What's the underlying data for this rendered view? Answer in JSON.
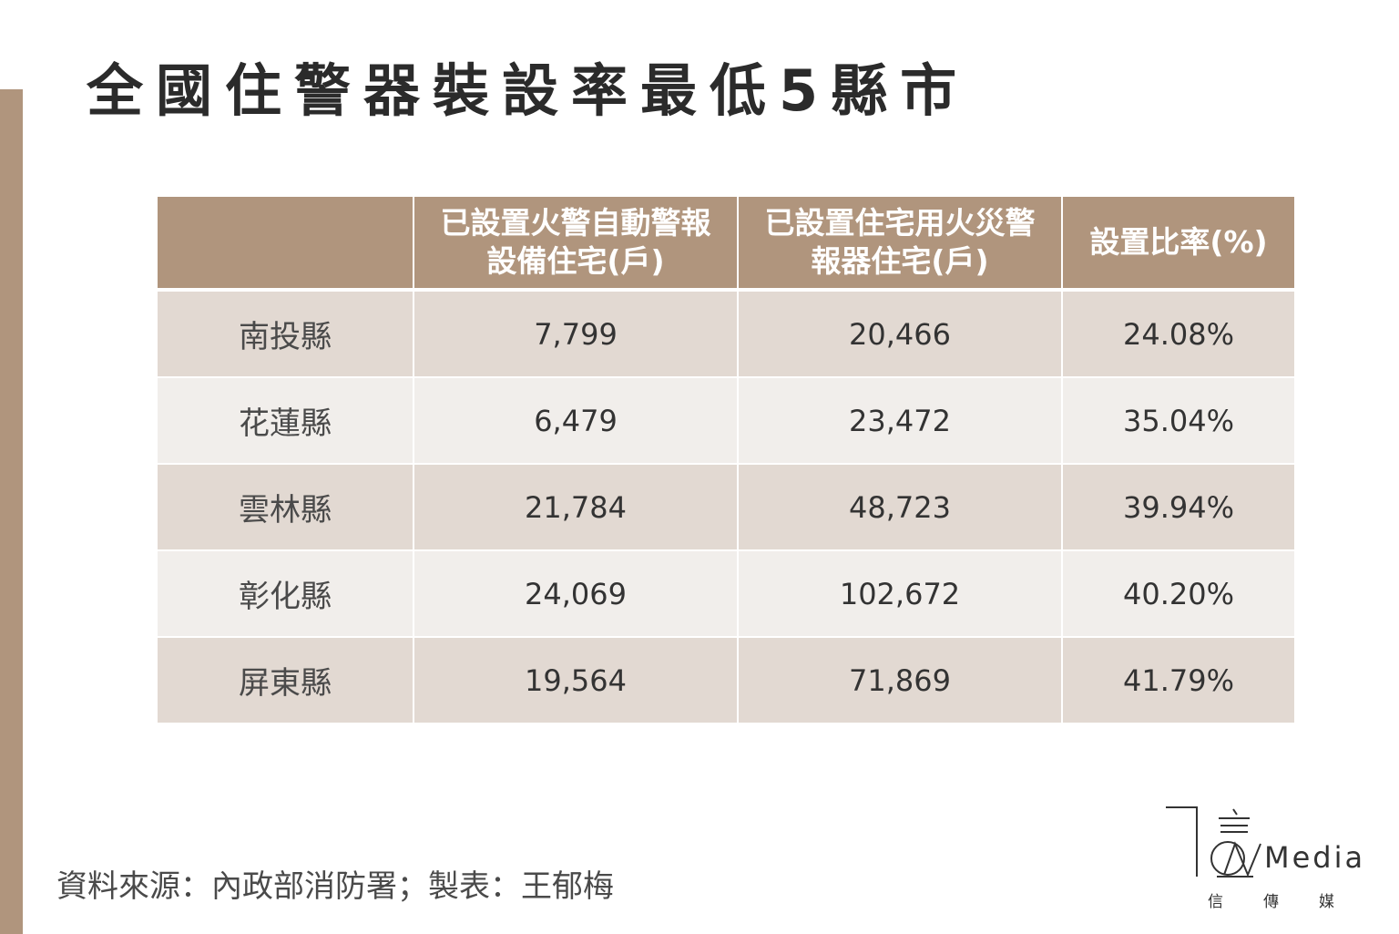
{
  "title": "全國住警器裝設率最低5縣市",
  "table": {
    "headers": [
      "",
      "已設置火警自動警報設備住宅(戶)",
      "已設置住宅用火災警報器住宅(戶)",
      "設置比率(%)"
    ],
    "header_lines": {
      "col1_line1": "已設置火警自動警報",
      "col1_line2": "設備住宅(戶)",
      "col2_line1": "已設置住宅用火災警",
      "col2_line2": "報器住宅(戶)",
      "col3": "設置比率(%)"
    },
    "rows": [
      {
        "county": "南投縣",
        "auto_alarm": "7,799",
        "residential_alarm": "20,466",
        "rate": "24.08%"
      },
      {
        "county": "花蓮縣",
        "auto_alarm": "6,479",
        "residential_alarm": "23,472",
        "rate": "35.04%"
      },
      {
        "county": "雲林縣",
        "auto_alarm": "21,784",
        "residential_alarm": "48,723",
        "rate": "39.94%"
      },
      {
        "county": "彰化縣",
        "auto_alarm": "24,069",
        "residential_alarm": "102,672",
        "rate": "40.20%"
      },
      {
        "county": "屏東縣",
        "auto_alarm": "19,564",
        "residential_alarm": "71,869",
        "rate": "41.79%"
      }
    ]
  },
  "source": "資料來源：內政部消防署；製表：王郁梅",
  "logo": {
    "word": "Media",
    "subtitle": "信傳媒"
  },
  "colors": {
    "accent": "#b0957d",
    "row_dark": "#e2d9d2",
    "row_light": "#f1eeeb"
  }
}
